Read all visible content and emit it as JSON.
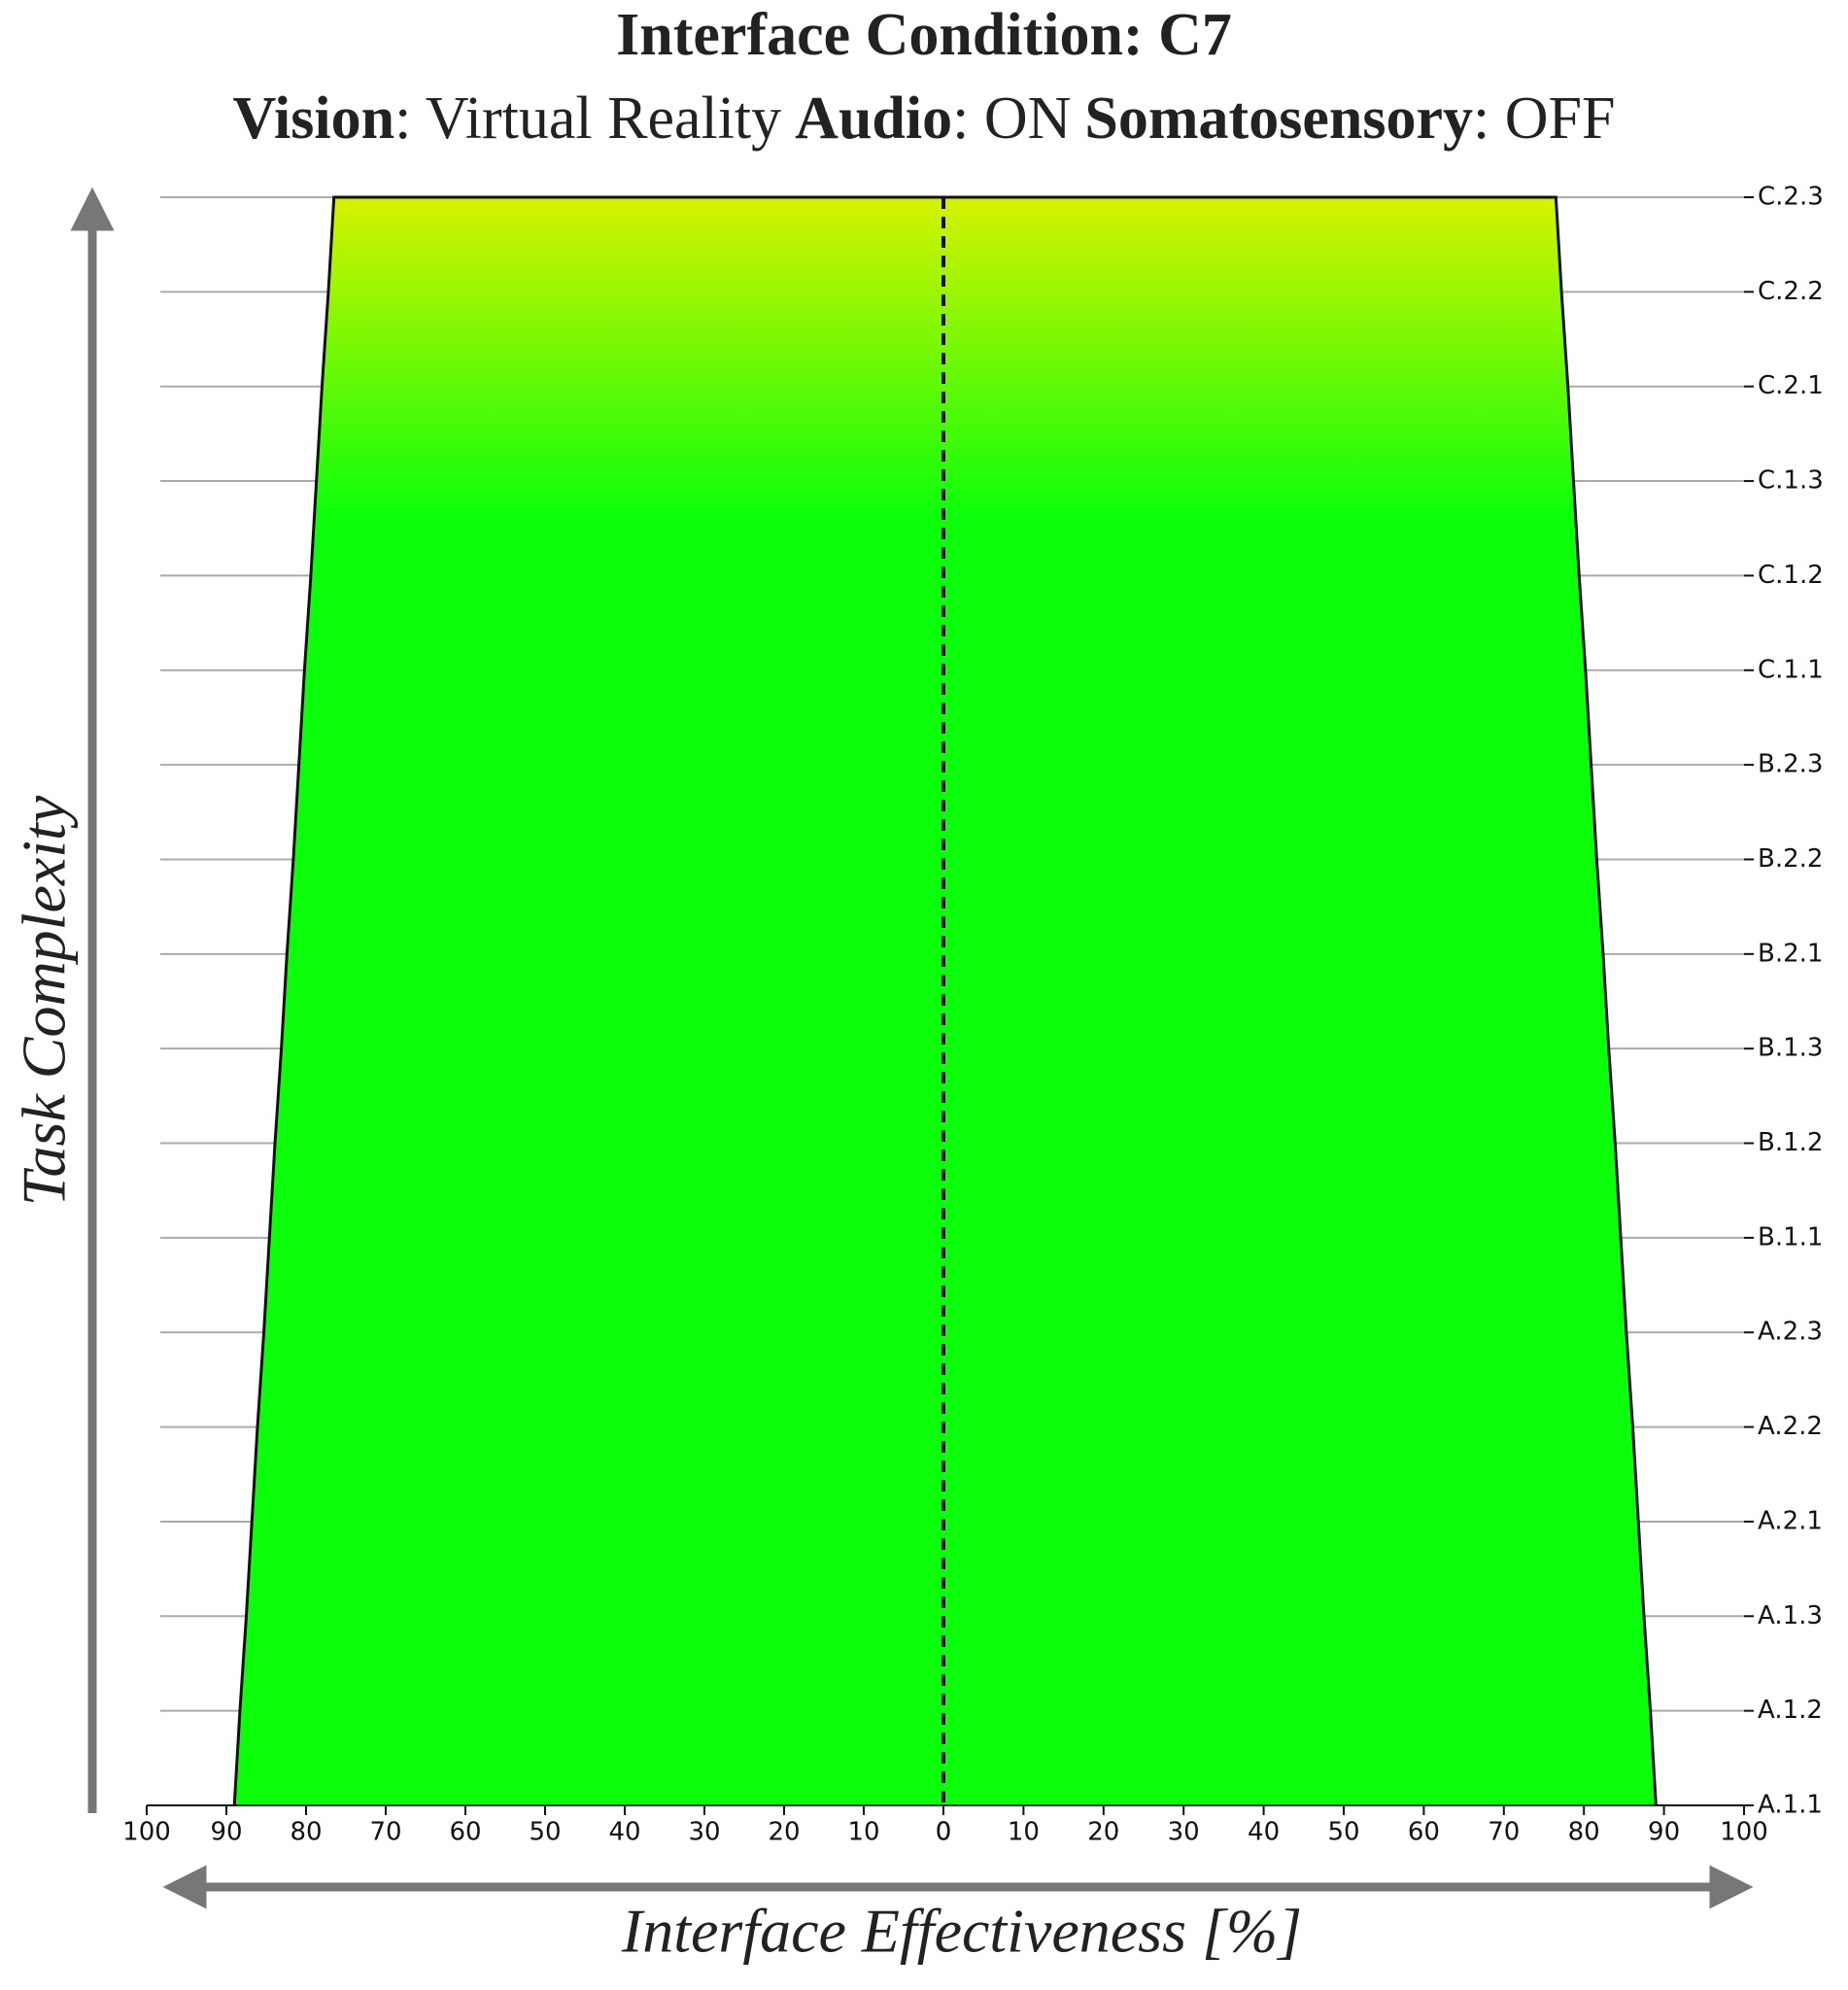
{
  "chart_data": {
    "type": "mirrored-area",
    "title": "Interface Condition: C7",
    "subtitle": [
      "Vision",
      ": Virtual Reality",
      "Audio",
      ": ON",
      "Somatosensory",
      ": OFF"
    ],
    "xlabel": "Interface Effectiveness [%]",
    "ylabel": "Task Complexity",
    "categories": [
      "A.1.1",
      "A.1.2",
      "A.1.3",
      "A.2.1",
      "A.2.2",
      "A.2.3",
      "B.1.1",
      "B.1.2",
      "B.1.3",
      "B.2.1",
      "B.2.2",
      "B.2.3",
      "C.1.1",
      "C.1.2",
      "C.1.3",
      "C.2.1",
      "C.2.2",
      "C.2.3"
    ],
    "values_left": [
      89,
      88.3,
      87.5,
      86.8,
      86.1,
      85.3,
      84.6,
      83.9,
      83.1,
      82.4,
      81.6,
      80.9,
      80.2,
      79.4,
      78.7,
      78.0,
      77.2,
      76.5
    ],
    "values_right": [
      89,
      88.3,
      87.5,
      86.8,
      86.1,
      85.3,
      84.6,
      83.9,
      83.1,
      82.4,
      81.6,
      80.9,
      80.2,
      79.4,
      78.7,
      78.0,
      77.2,
      76.5
    ],
    "xlim": [
      0,
      100
    ],
    "xticks": [
      0,
      10,
      20,
      30,
      40,
      50,
      60,
      70,
      80,
      90,
      100
    ],
    "grid": true,
    "gradient": {
      "top": "#d6f200",
      "bottom": "#0bff0b"
    }
  }
}
